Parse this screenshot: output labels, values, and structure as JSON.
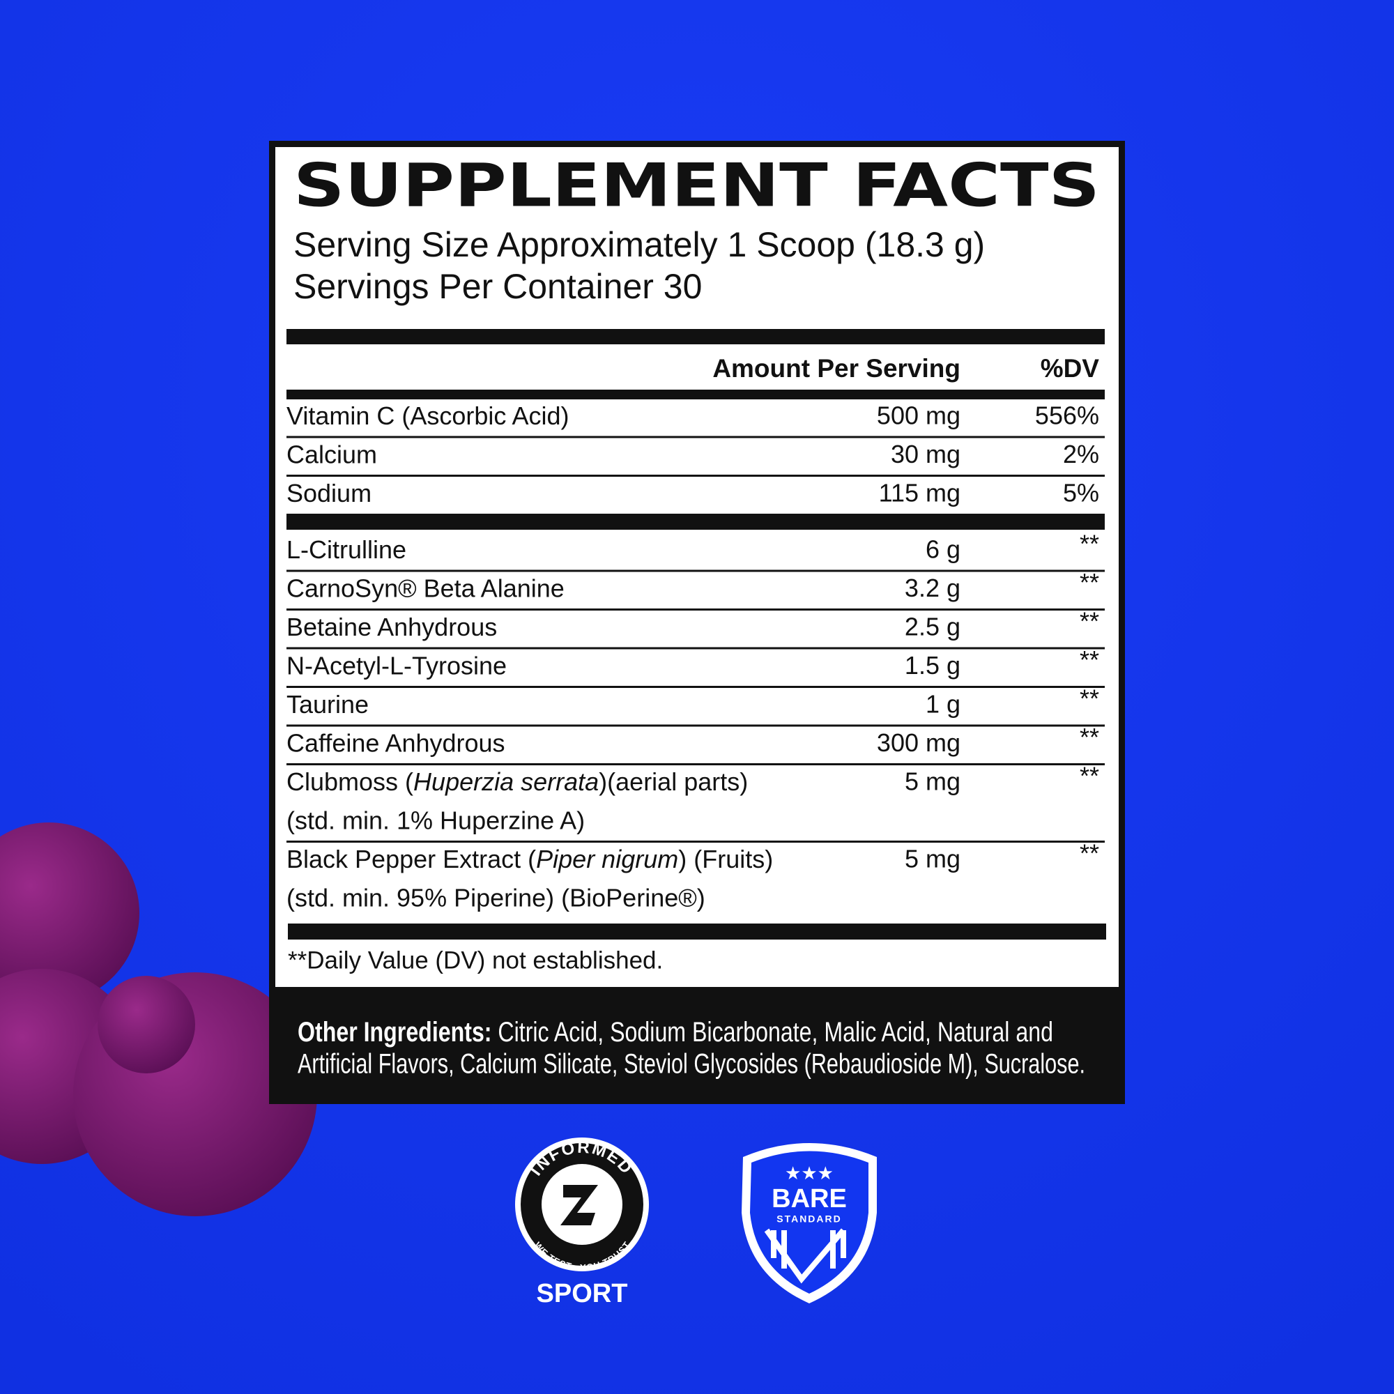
{
  "panel": {
    "title": "SUPPLEMENT FACTS",
    "serving_size": "Serving Size Approximately 1 Scoop (18.3 g)",
    "servings": "Servings Per Container 30",
    "header": {
      "amount": "Amount Per Serving",
      "dv": "%DV"
    },
    "vitamins": [
      {
        "lines": [
          [
            "Vitamin C (Ascorbic Acid)"
          ]
        ],
        "amount": "500 mg",
        "dv": "556%"
      },
      {
        "lines": [
          [
            "Calcium"
          ]
        ],
        "amount": "30 mg",
        "dv": "2%"
      },
      {
        "lines": [
          [
            "Sodium"
          ]
        ],
        "amount": "115 mg",
        "dv": "5%"
      }
    ],
    "ingredients": [
      {
        "lines": [
          [
            "L-Citrulline"
          ]
        ],
        "amount": "6 g",
        "dv": "**"
      },
      {
        "lines": [
          [
            "CarnoSyn® Beta Alanine"
          ]
        ],
        "amount": "3.2 g",
        "dv": "**"
      },
      {
        "lines": [
          [
            "Betaine Anhydrous"
          ]
        ],
        "amount": "2.5 g",
        "dv": "**"
      },
      {
        "lines": [
          [
            "N-Acetyl-L-Tyrosine"
          ]
        ],
        "amount": "1.5 g",
        "dv": "**"
      },
      {
        "lines": [
          [
            "Taurine"
          ]
        ],
        "amount": "1 g",
        "dv": "**"
      },
      {
        "lines": [
          [
            "Caffeine Anhydrous"
          ]
        ],
        "amount": "300 mg",
        "dv": "**"
      },
      {
        "lines": [
          [
            "Clubmoss (",
            "Huperzia serrata",
            ")(aerial parts)"
          ],
          [
            "(std. min. 1% Huperzine A)"
          ]
        ],
        "amount": "5 mg",
        "dv": "**"
      },
      {
        "lines": [
          [
            "Black Pepper Extract (",
            "Piper nigrum",
            ") (Fruits)"
          ],
          [
            "(std. min. 95% Piperine) (BioPerine®)"
          ]
        ],
        "amount": "5 mg",
        "dv": "**"
      }
    ],
    "footnote": "**Daily Value (DV) not established.",
    "other": {
      "label": "Other Ingredients:",
      "lines": [
        " Citric Acid, Sodium Bicarbonate, Malic Acid, Natural and",
        "Artificial Flavors, Calcium Silicate, Steviol Glycosides (Rebaudioside M), Sucralose."
      ]
    }
  },
  "badges": {
    "informed": {
      "top": "INFORMED",
      "bottom": "WE TEST · YOU TRUST",
      "label": "SPORT"
    },
    "bare": {
      "name": "BARE",
      "sub": "STANDARD"
    }
  }
}
